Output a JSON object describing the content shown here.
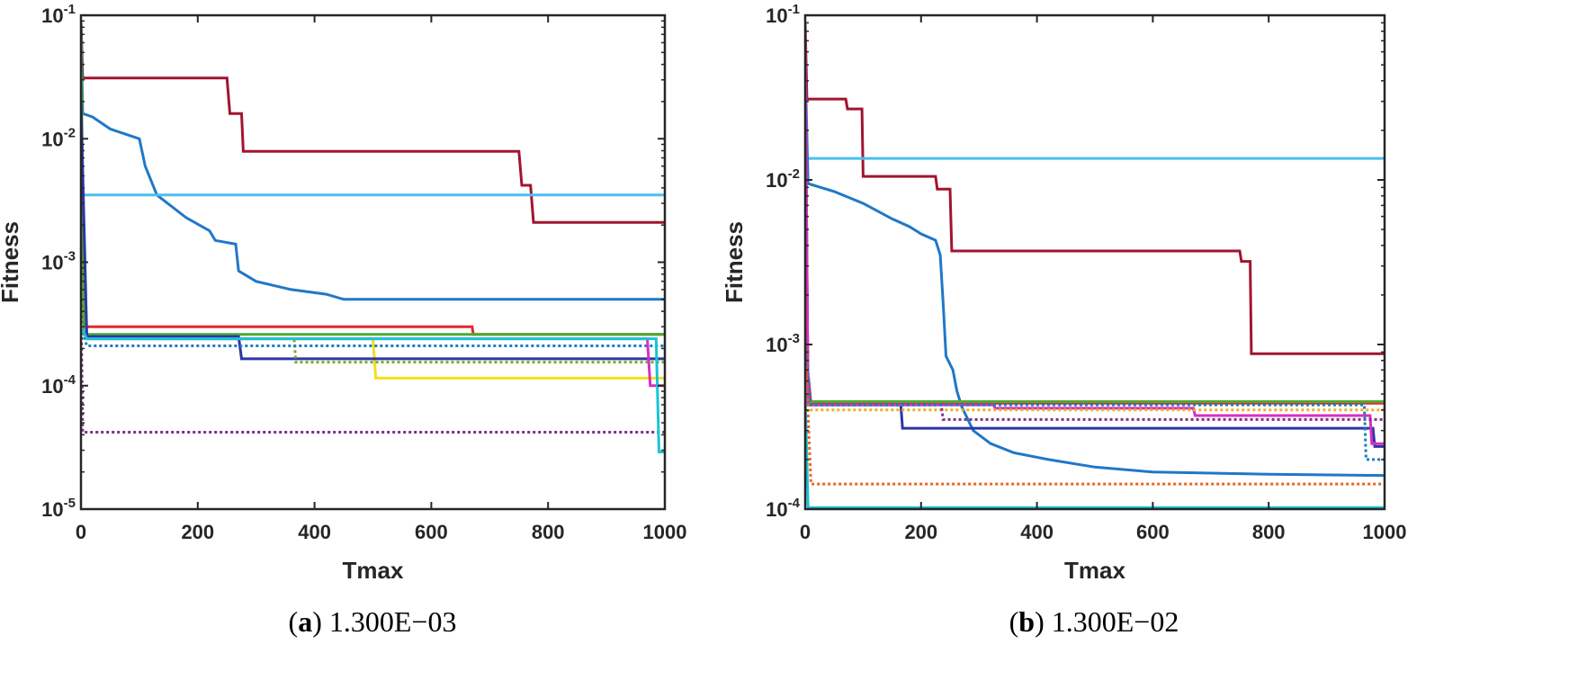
{
  "chart_data": [
    {
      "type": "line",
      "id": "a",
      "xscale": "linear",
      "yscale": "log",
      "xlim": [
        0,
        1000
      ],
      "ylim_exp": [
        -5,
        -1
      ],
      "xticks": [
        "0",
        "200",
        "400",
        "600",
        "800",
        "1000"
      ],
      "xlabel": "Tmax",
      "ylabel": "Fitness",
      "caption_letter": "a",
      "caption_value": "1.300E−03",
      "series": [
        {
          "name": "Dark red solid",
          "color": "#a2142f",
          "dash": "solid",
          "points": [
            [
              0,
              0.09
            ],
            [
              3,
              0.031
            ],
            [
              250,
              0.031
            ],
            [
              255,
              0.016
            ],
            [
              275,
              0.016
            ],
            [
              278,
              0.0079
            ],
            [
              750,
              0.0079
            ],
            [
              755,
              0.0042
            ],
            [
              770,
              0.0042
            ],
            [
              775,
              0.0021
            ],
            [
              1000,
              0.0021
            ]
          ]
        },
        {
          "name": "Blue solid (smooth)",
          "color": "#1f78c8",
          "dash": "solid",
          "points": [
            [
              0,
              0.09
            ],
            [
              3,
              0.016
            ],
            [
              20,
              0.015
            ],
            [
              50,
              0.012
            ],
            [
              100,
              0.01
            ],
            [
              110,
              0.006
            ],
            [
              130,
              0.0035
            ],
            [
              180,
              0.0023
            ],
            [
              220,
              0.0018
            ],
            [
              230,
              0.0015
            ],
            [
              265,
              0.0014
            ],
            [
              270,
              0.00085
            ],
            [
              300,
              0.0007
            ],
            [
              360,
              0.0006
            ],
            [
              420,
              0.00055
            ],
            [
              450,
              0.0005
            ],
            [
              600,
              0.0005
            ],
            [
              800,
              0.0005
            ],
            [
              1000,
              0.0005
            ]
          ]
        },
        {
          "name": "Light blue solid",
          "color": "#4dbeee",
          "dash": "solid",
          "points": [
            [
              0,
              0.0035
            ],
            [
              1000,
              0.0035
            ]
          ]
        },
        {
          "name": "Red solid",
          "color": "#e8262c",
          "dash": "solid",
          "points": [
            [
              0,
              0.002
            ],
            [
              8,
              0.0003
            ],
            [
              670,
              0.0003
            ],
            [
              672,
              0.00026
            ],
            [
              1000,
              0.00026
            ]
          ]
        },
        {
          "name": "Green solid",
          "color": "#4daa2f",
          "dash": "solid",
          "points": [
            [
              0,
              0.08
            ],
            [
              5,
              0.00026
            ],
            [
              1000,
              0.00026
            ]
          ]
        },
        {
          "name": "Purple dotted",
          "color": "#7e2f8e",
          "dash": "dotted",
          "points": [
            [
              0,
              0.0005
            ],
            [
              3,
              4.2e-05
            ],
            [
              1000,
              4.2e-05
            ]
          ]
        },
        {
          "name": "Yellow solid",
          "color": "#f2e01a",
          "dash": "solid",
          "points": [
            [
              0,
              0.0003
            ],
            [
              10,
              0.00024
            ],
            [
              500,
              0.00024
            ],
            [
              505,
              0.000115
            ],
            [
              1000,
              0.000115
            ]
          ]
        },
        {
          "name": "Navy solid",
          "color": "#2c35a8",
          "dash": "solid",
          "points": [
            [
              0,
              0.02
            ],
            [
              10,
              0.00025
            ],
            [
              270,
              0.00025
            ],
            [
              275,
              0.000165
            ],
            [
              1000,
              0.000165
            ]
          ]
        },
        {
          "name": "Olive dotted",
          "color": "#77ac30",
          "dash": "dotted",
          "points": [
            [
              0,
              0.0003
            ],
            [
              10,
              0.00024
            ],
            [
              365,
              0.00024
            ],
            [
              368,
              0.000155
            ],
            [
              1000,
              0.000155
            ]
          ]
        },
        {
          "name": "Steel blue dotted",
          "color": "#1a7fbf",
          "dash": "dotted",
          "points": [
            [
              0,
              0.0003
            ],
            [
              10,
              0.00021
            ],
            [
              1000,
              0.00021
            ]
          ]
        },
        {
          "name": "Magenta solid",
          "color": "#d630c0",
          "dash": "solid",
          "points": [
            [
              0,
              0.0003
            ],
            [
              10,
              0.00024
            ],
            [
              970,
              0.00024
            ],
            [
              975,
              0.0001
            ],
            [
              1000,
              0.0001
            ]
          ]
        },
        {
          "name": "Cyan solid",
          "color": "#18c4d4",
          "dash": "solid",
          "points": [
            [
              0,
              0.0003
            ],
            [
              10,
              0.00024
            ],
            [
              985,
              0.00024
            ],
            [
              990,
              2.9e-05
            ],
            [
              1000,
              2.9e-05
            ]
          ]
        }
      ]
    },
    {
      "type": "line",
      "id": "b",
      "xscale": "linear",
      "yscale": "log",
      "xlim": [
        0,
        1000
      ],
      "ylim_exp": [
        -4,
        -1
      ],
      "xticks": [
        "0",
        "200",
        "400",
        "600",
        "800",
        "1000"
      ],
      "xlabel": "Tmax",
      "ylabel": "Fitness",
      "caption_letter": "b",
      "caption_value": "1.300E−02",
      "series": [
        {
          "name": "Dark red solid",
          "color": "#a2142f",
          "dash": "solid",
          "points": [
            [
              0,
              0.09
            ],
            [
              3,
              0.031
            ],
            [
              70,
              0.031
            ],
            [
              73,
              0.027
            ],
            [
              98,
              0.027
            ],
            [
              100,
              0.0105
            ],
            [
              225,
              0.0105
            ],
            [
              228,
              0.0088
            ],
            [
              250,
              0.0088
            ],
            [
              253,
              0.0037
            ],
            [
              750,
              0.0037
            ],
            [
              753,
              0.0032
            ],
            [
              768,
              0.0032
            ],
            [
              770,
              0.00088
            ],
            [
              1000,
              0.00088
            ]
          ]
        },
        {
          "name": "Light blue solid",
          "color": "#4dbeee",
          "dash": "solid",
          "points": [
            [
              0,
              0.0135
            ],
            [
              1000,
              0.0135
            ]
          ]
        },
        {
          "name": "Blue solid (smooth)",
          "color": "#1f78c8",
          "dash": "solid",
          "points": [
            [
              0,
              0.05
            ],
            [
              5,
              0.0095
            ],
            [
              50,
              0.0085
            ],
            [
              100,
              0.0072
            ],
            [
              150,
              0.0058
            ],
            [
              180,
              0.0052
            ],
            [
              200,
              0.0047
            ],
            [
              225,
              0.0043
            ],
            [
              233,
              0.0035
            ],
            [
              238,
              0.0018
            ],
            [
              243,
              0.00085
            ],
            [
              255,
              0.0007
            ],
            [
              262,
              0.00052
            ],
            [
              270,
              0.00042
            ],
            [
              290,
              0.0003
            ],
            [
              320,
              0.00025
            ],
            [
              360,
              0.00022
            ],
            [
              420,
              0.0002
            ],
            [
              500,
              0.00018
            ],
            [
              600,
              0.000168
            ],
            [
              800,
              0.000163
            ],
            [
              1000,
              0.00016
            ]
          ]
        },
        {
          "name": "Red solid",
          "color": "#e8262c",
          "dash": "solid",
          "points": [
            [
              0,
              0.001
            ],
            [
              10,
              0.00044
            ],
            [
              1000,
              0.00044
            ]
          ]
        },
        {
          "name": "Green solid",
          "color": "#4daa2f",
          "dash": "solid",
          "points": [
            [
              0,
              0.05
            ],
            [
              5,
              0.00045
            ],
            [
              1000,
              0.00045
            ]
          ]
        },
        {
          "name": "Navy solid",
          "color": "#2c35a8",
          "dash": "solid",
          "points": [
            [
              0,
              0.05
            ],
            [
              5,
              0.00043
            ],
            [
              165,
              0.00043
            ],
            [
              168,
              0.00031
            ],
            [
              980,
              0.00031
            ],
            [
              983,
              0.00024
            ],
            [
              1000,
              0.00024
            ]
          ]
        },
        {
          "name": "Magenta solid",
          "color": "#d630c0",
          "dash": "solid",
          "points": [
            [
              0,
              0.08
            ],
            [
              5,
              0.00043
            ],
            [
              325,
              0.00043
            ],
            [
              328,
              0.00041
            ],
            [
              670,
              0.00041
            ],
            [
              673,
              0.00037
            ],
            [
              975,
              0.00037
            ],
            [
              978,
              0.00025
            ],
            [
              1000,
              0.00025
            ]
          ]
        },
        {
          "name": "Yellow dotted",
          "color": "#edb120",
          "dash": "dotted",
          "points": [
            [
              0,
              0.001
            ],
            [
              10,
              0.0004
            ],
            [
              1000,
              0.0004
            ]
          ]
        },
        {
          "name": "Purple dotted",
          "color": "#7e2f8e",
          "dash": "dotted",
          "points": [
            [
              0,
              0.001
            ],
            [
              10,
              0.00043
            ],
            [
              235,
              0.00043
            ],
            [
              238,
              0.00035
            ],
            [
              1000,
              0.00035
            ]
          ]
        },
        {
          "name": "Steel blue dotted",
          "color": "#1a7fbf",
          "dash": "dotted",
          "points": [
            [
              0,
              0.001
            ],
            [
              10,
              0.00043
            ],
            [
              965,
              0.00043
            ],
            [
              968,
              0.0002
            ],
            [
              1000,
              0.0002
            ]
          ]
        },
        {
          "name": "Orange dotted",
          "color": "#f0621e",
          "dash": "dotted",
          "points": [
            [
              0,
              0.001
            ],
            [
              10,
              0.000142
            ],
            [
              1000,
              0.000142
            ]
          ]
        },
        {
          "name": "Cyan solid",
          "color": "#18c4d4",
          "dash": "solid",
          "points": [
            [
              0,
              0.0005
            ],
            [
              5,
              0.000102
            ],
            [
              1000,
              0.000102
            ]
          ]
        }
      ]
    }
  ]
}
